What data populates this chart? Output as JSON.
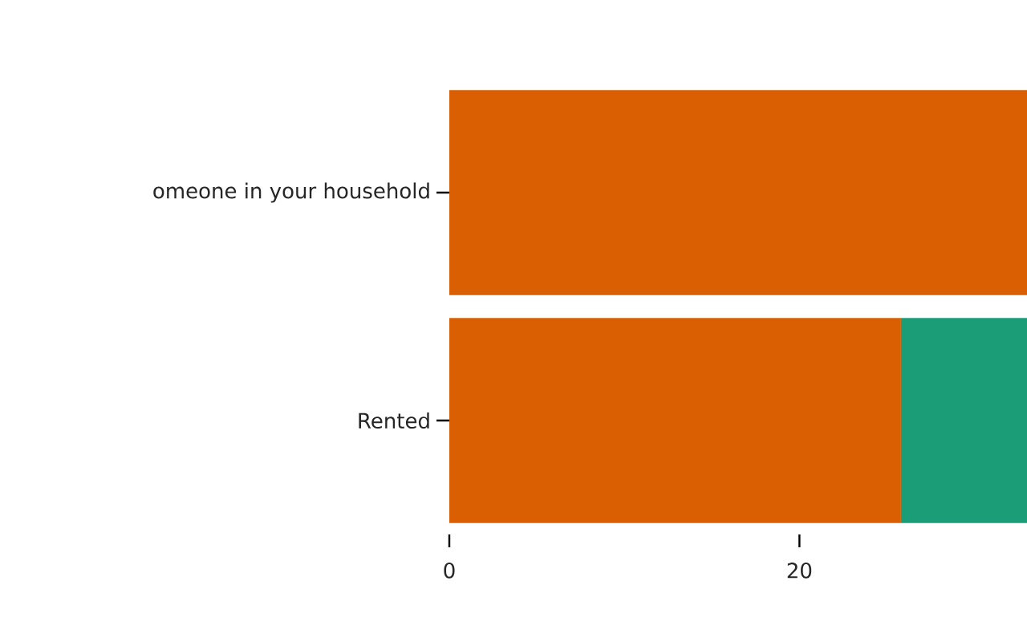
{
  "chart_data": {
    "type": "bar",
    "orientation": "horizontal",
    "stacked": true,
    "categories": [
      "omeone in your household",
      "Rented"
    ],
    "series": [
      {
        "color": "#d95f02",
        "values": [
          33,
          25.8
        ]
      },
      {
        "color": "#1b9e77",
        "values": [
          null,
          7.2
        ]
      }
    ],
    "xlim": [
      0,
      33
    ],
    "xticks": [
      0,
      20
    ]
  }
}
